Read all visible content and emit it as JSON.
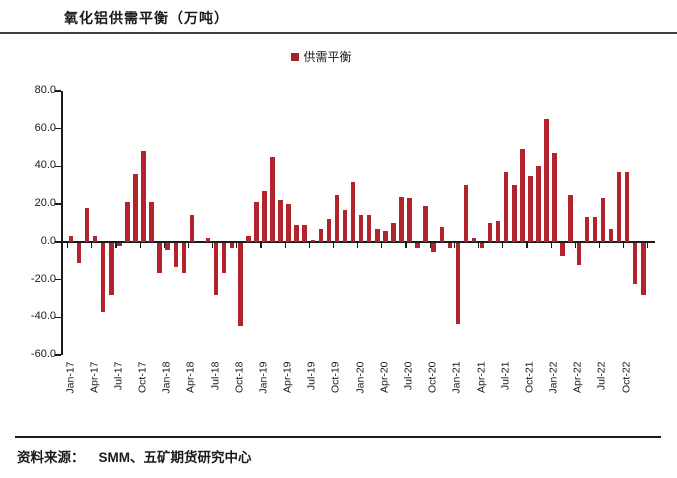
{
  "title": "氧化铝供需平衡（万吨）",
  "legend": {
    "label": "供需平衡",
    "color": "#a6232b"
  },
  "footer": {
    "source_label": "资料来源：",
    "source_value": "SMM、五矿期货研究中心"
  },
  "chart_data": {
    "type": "bar",
    "title": "氧化铝供需平衡（万吨）",
    "series_name": "供需平衡",
    "bar_color": "#b2232b",
    "grid": false,
    "legend_position": "top-center",
    "ylim": [
      -60,
      80
    ],
    "y_tick_interval": 20,
    "y_ticks": [
      80,
      60,
      40,
      20,
      0,
      -20,
      -40,
      -60
    ],
    "y_tick_labels": [
      "80.0",
      "60.0",
      "40.0",
      "20.0",
      "0.0",
      "-20.0",
      "-40.0",
      "-60.0"
    ],
    "x_tick_labels": [
      "Jan-17",
      "Apr-17",
      "Jul-17",
      "Oct-17",
      "Jan-18",
      "Apr-18",
      "Jul-18",
      "Oct-18",
      "Jan-19",
      "Apr-19",
      "Jul-19",
      "Oct-19",
      "Jan-20",
      "Apr-20",
      "Jul-20",
      "Oct-20",
      "Jan-21",
      "Apr-21",
      "Jul-21",
      "Oct-21",
      "Jan-22",
      "Apr-22",
      "Jul-22",
      "Oct-22"
    ],
    "x": [
      "Jan-17",
      "Feb-17",
      "Mar-17",
      "Apr-17",
      "May-17",
      "Jun-17",
      "Jul-17",
      "Aug-17",
      "Sep-17",
      "Oct-17",
      "Nov-17",
      "Dec-17",
      "Jan-18",
      "Feb-18",
      "Mar-18",
      "Apr-18",
      "May-18",
      "Jun-18",
      "Jul-18",
      "Aug-18",
      "Sep-18",
      "Oct-18",
      "Nov-18",
      "Dec-18",
      "Jan-19",
      "Feb-19",
      "Mar-19",
      "Apr-19",
      "May-19",
      "Jun-19",
      "Jul-19",
      "Aug-19",
      "Sep-19",
      "Oct-19",
      "Nov-19",
      "Dec-19",
      "Jan-20",
      "Feb-20",
      "Mar-20",
      "Apr-20",
      "May-20",
      "Jun-20",
      "Jul-20",
      "Aug-20",
      "Sep-20",
      "Oct-20",
      "Nov-20",
      "Dec-20",
      "Jan-21",
      "Feb-21",
      "Mar-21",
      "Apr-21",
      "May-21",
      "Jun-21",
      "Jul-21",
      "Aug-21",
      "Sep-21",
      "Oct-21",
      "Nov-21",
      "Dec-21",
      "Jan-22",
      "Feb-22",
      "Mar-22",
      "Apr-22",
      "May-22",
      "Jun-22",
      "Jul-22",
      "Aug-22",
      "Sep-22",
      "Oct-22",
      "Nov-22",
      "Dec-22"
    ],
    "values": [
      3,
      -11,
      18,
      3,
      -37,
      -28,
      -2,
      21,
      36,
      48,
      21,
      -16,
      -4,
      -13,
      -16,
      14,
      0,
      2,
      -28,
      -16,
      -3,
      -44,
      3,
      21,
      27,
      45,
      22,
      20,
      9,
      9,
      1,
      7,
      12,
      25,
      17,
      32,
      14,
      14,
      7,
      6,
      10,
      24,
      23,
      -3,
      19,
      -5,
      8,
      -3,
      -43,
      30,
      2,
      -3,
      10,
      11,
      37,
      30,
      49,
      35,
      40,
      65,
      47,
      -7,
      25,
      -12,
      13,
      13,
      23,
      7,
      37,
      37,
      -22,
      -28
    ]
  }
}
